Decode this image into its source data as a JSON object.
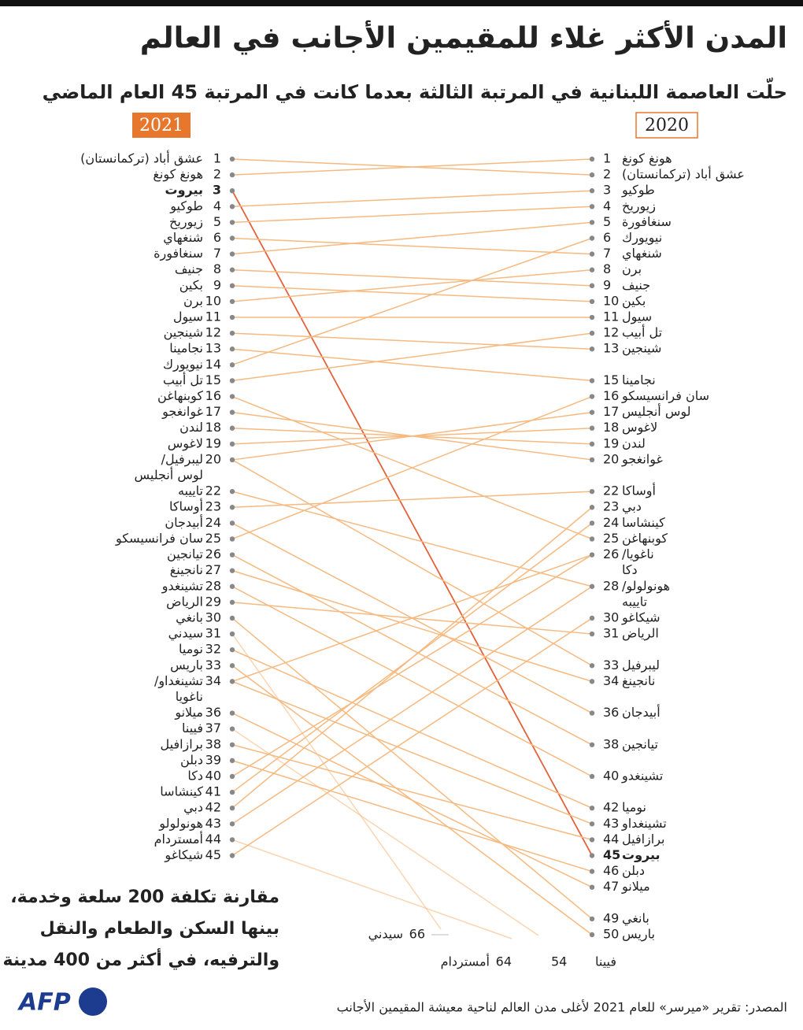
{
  "chart_data": {
    "type": "slope",
    "title": "المدن الأكثر غلاء للمقيمين الأجانب في العالم",
    "subtitle": "حلّت العاصمة اللبنانية في المرتبة الثالثة بعدما كانت في المرتبة 45 العام الماضي",
    "year_left": "2021",
    "year_right": "2020",
    "ylim": [
      1,
      50
    ],
    "highlight": "بيروت",
    "line_color": "#f6b97f",
    "highlight_color": "#e2623c",
    "accent_color": "#e8772e",
    "left": [
      {
        "rank": 1,
        "names": [
          "عشق أباد (تركمانستان)"
        ]
      },
      {
        "rank": 2,
        "names": [
          "هونغ كونغ"
        ]
      },
      {
        "rank": 3,
        "names": [
          "بيروت"
        ]
      },
      {
        "rank": 4,
        "names": [
          "طوكيو"
        ]
      },
      {
        "rank": 5,
        "names": [
          "زيوريخ"
        ]
      },
      {
        "rank": 6,
        "names": [
          "شنغهاي"
        ]
      },
      {
        "rank": 7,
        "names": [
          "سنغافورة"
        ]
      },
      {
        "rank": 8,
        "names": [
          "جنيف"
        ]
      },
      {
        "rank": 9,
        "names": [
          "بكين"
        ]
      },
      {
        "rank": 10,
        "names": [
          "برن"
        ]
      },
      {
        "rank": 11,
        "names": [
          "سيول"
        ]
      },
      {
        "rank": 12,
        "names": [
          "شينجين"
        ]
      },
      {
        "rank": 13,
        "names": [
          "نجامينا"
        ]
      },
      {
        "rank": 14,
        "names": [
          "نيويورك"
        ]
      },
      {
        "rank": 15,
        "names": [
          "تل أبيب"
        ]
      },
      {
        "rank": 16,
        "names": [
          "كوبنهاغن"
        ]
      },
      {
        "rank": 17,
        "names": [
          "غوانغجو"
        ]
      },
      {
        "rank": 18,
        "names": [
          "لندن"
        ]
      },
      {
        "rank": 19,
        "names": [
          "لاغوس"
        ]
      },
      {
        "rank": 20,
        "names": [
          "ليبرفيل/",
          "لوس أنجليس"
        ]
      },
      {
        "rank": 22,
        "names": [
          "تاييبه"
        ]
      },
      {
        "rank": 23,
        "names": [
          "أوساكا"
        ]
      },
      {
        "rank": 24,
        "names": [
          "أبيدجان"
        ]
      },
      {
        "rank": 25,
        "names": [
          "سان فرانسيسكو"
        ]
      },
      {
        "rank": 26,
        "names": [
          "تيانجين"
        ]
      },
      {
        "rank": 27,
        "names": [
          "نانجينغ"
        ]
      },
      {
        "rank": 28,
        "names": [
          "تشينغدو"
        ]
      },
      {
        "rank": 29,
        "names": [
          "الرياض"
        ]
      },
      {
        "rank": 30,
        "names": [
          "بانغي"
        ]
      },
      {
        "rank": 31,
        "names": [
          "سيدني"
        ]
      },
      {
        "rank": 32,
        "names": [
          "نوميا"
        ]
      },
      {
        "rank": 33,
        "names": [
          "باريس"
        ]
      },
      {
        "rank": 34,
        "names": [
          "تشينغداو/",
          "ناغويا"
        ]
      },
      {
        "rank": 36,
        "names": [
          "ميلانو"
        ]
      },
      {
        "rank": 37,
        "names": [
          "فيينا"
        ]
      },
      {
        "rank": 38,
        "names": [
          "برازافيل"
        ]
      },
      {
        "rank": 39,
        "names": [
          "دبلن"
        ]
      },
      {
        "rank": 40,
        "names": [
          "دكا"
        ]
      },
      {
        "rank": 41,
        "names": [
          "كينشاسا"
        ]
      },
      {
        "rank": 42,
        "names": [
          "دبي"
        ]
      },
      {
        "rank": 43,
        "names": [
          "هونولولو"
        ]
      },
      {
        "rank": 44,
        "names": [
          "أمستردام"
        ]
      },
      {
        "rank": 45,
        "names": [
          "شيكاغو"
        ]
      }
    ],
    "right": [
      {
        "rank": 1,
        "names": [
          "هونغ كونغ"
        ]
      },
      {
        "rank": 2,
        "names": [
          "عشق أباد (تركمانستان)"
        ]
      },
      {
        "rank": 3,
        "names": [
          "طوكيو"
        ]
      },
      {
        "rank": 4,
        "names": [
          "زيوريخ"
        ]
      },
      {
        "rank": 5,
        "names": [
          "سنغافورة"
        ]
      },
      {
        "rank": 6,
        "names": [
          "نيويورك"
        ]
      },
      {
        "rank": 7,
        "names": [
          "شنغهاي"
        ]
      },
      {
        "rank": 8,
        "names": [
          "برن"
        ]
      },
      {
        "rank": 9,
        "names": [
          "جنيف"
        ]
      },
      {
        "rank": 10,
        "names": [
          "بكين"
        ]
      },
      {
        "rank": 11,
        "names": [
          "سيول"
        ]
      },
      {
        "rank": 12,
        "names": [
          "تل أبيب"
        ]
      },
      {
        "rank": 13,
        "names": [
          "شينجين"
        ]
      },
      {
        "rank": 15,
        "names": [
          "نجامينا"
        ]
      },
      {
        "rank": 16,
        "names": [
          "سان فرانسيسكو"
        ]
      },
      {
        "rank": 17,
        "names": [
          "لوس أنجليس"
        ]
      },
      {
        "rank": 18,
        "names": [
          "لاغوس"
        ]
      },
      {
        "rank": 19,
        "names": [
          "لندن"
        ]
      },
      {
        "rank": 20,
        "names": [
          "غوانغجو"
        ]
      },
      {
        "rank": 22,
        "names": [
          "أوساكا"
        ]
      },
      {
        "rank": 23,
        "names": [
          "دبي"
        ]
      },
      {
        "rank": 24,
        "names": [
          "كينشاسا"
        ]
      },
      {
        "rank": 25,
        "names": [
          "كوبنهاغن"
        ]
      },
      {
        "rank": 26,
        "names": [
          "ناغويا/",
          "دكا"
        ]
      },
      {
        "rank": 28,
        "names": [
          "هونولولو/",
          "تاييبه"
        ]
      },
      {
        "rank": 30,
        "names": [
          "شيكاغو"
        ]
      },
      {
        "rank": 31,
        "names": [
          "الرياض"
        ]
      },
      {
        "rank": 33,
        "names": [
          "ليبرفيل"
        ]
      },
      {
        "rank": 34,
        "names": [
          "نانجينغ"
        ]
      },
      {
        "rank": 36,
        "names": [
          "أبيدجان"
        ]
      },
      {
        "rank": 38,
        "names": [
          "تيانجين"
        ]
      },
      {
        "rank": 40,
        "names": [
          "تشينغدو"
        ]
      },
      {
        "rank": 42,
        "names": [
          "نوميا"
        ]
      },
      {
        "rank": 43,
        "names": [
          "تشينغداو"
        ]
      },
      {
        "rank": 44,
        "names": [
          "برازافيل"
        ]
      },
      {
        "rank": 45,
        "names": [
          "بيروت"
        ]
      },
      {
        "rank": 46,
        "names": [
          "دبلن"
        ]
      },
      {
        "rank": 47,
        "names": [
          "ميلانو"
        ]
      },
      {
        "rank": 49,
        "names": [
          "بانغي"
        ]
      },
      {
        "rank": 50,
        "names": [
          "باريس"
        ]
      }
    ],
    "offchart": [
      {
        "rank": 66,
        "name": "سيدني"
      },
      {
        "rank": 64,
        "name": "أمستردام"
      },
      {
        "rank": 54,
        "name": "فيينا"
      }
    ],
    "note": [
      "مقارنة تكلفة 200 سلعة وخدمة،",
      "بينها السكن والطعام والنقل",
      "والترفيه، في أكثر من 400 مدينة"
    ],
    "source": "المصدر: تقرير «ميرسر» للعام 2021 لأغلى مدن العالم لناحية معيشة المقيمين الأجانب",
    "logo": "AFP"
  }
}
